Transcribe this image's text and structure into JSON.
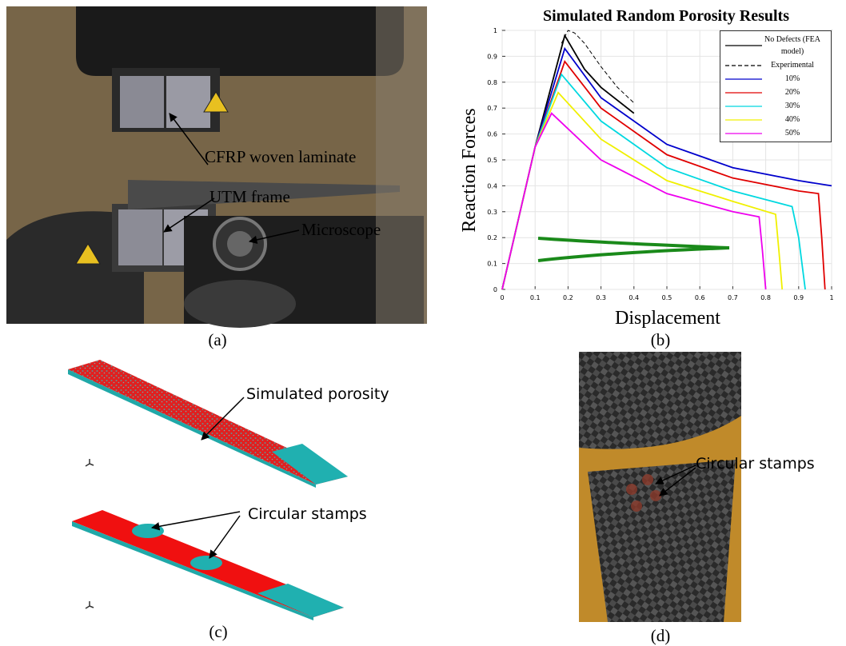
{
  "panel_a": {
    "labels": [
      "CFRP woven laminate",
      "UTM frame",
      "Microscope"
    ],
    "caption": "(a)"
  },
  "chart_data": {
    "type": "line",
    "title": "Simulated Random Porosity Results",
    "x_label": "Displacement",
    "y_label": "Reaction Forces",
    "xlim": [
      0,
      1
    ],
    "xticks": [
      0,
      0.1,
      0.2,
      0.3,
      0.4,
      0.5,
      0.6,
      0.7,
      0.8,
      0.9,
      1
    ],
    "ylim": [
      0,
      1
    ],
    "yticks": [
      0,
      0.1,
      0.2,
      0.3,
      0.4,
      0.5,
      0.6,
      0.7,
      0.8,
      0.9,
      1
    ],
    "grid": true,
    "legend": "top-right",
    "series": [
      {
        "name": "No Defects (FEA model)",
        "color": "#000000",
        "style": "solid",
        "x": [
          0,
          0.1,
          0.19,
          0.25,
          0.3,
          0.4
        ],
        "values": [
          0,
          0.55,
          0.98,
          0.85,
          0.78,
          0.68
        ]
      },
      {
        "name": "Experimental",
        "color": "#000000",
        "style": "dashed",
        "x": [
          0.18,
          0.2,
          0.22,
          0.25,
          0.3,
          0.35,
          0.4
        ],
        "values": [
          0.95,
          1.0,
          0.99,
          0.95,
          0.86,
          0.78,
          0.72
        ]
      },
      {
        "name": "10%",
        "color": "#0000cc",
        "style": "solid",
        "x": [
          0,
          0.1,
          0.19,
          0.3,
          0.5,
          0.7,
          0.9,
          1.0
        ],
        "values": [
          0,
          0.55,
          0.93,
          0.74,
          0.56,
          0.47,
          0.42,
          0.4
        ]
      },
      {
        "name": "20%",
        "color": "#e00000",
        "style": "solid",
        "x": [
          0,
          0.1,
          0.19,
          0.3,
          0.5,
          0.7,
          0.9,
          0.96,
          0.97,
          0.98
        ],
        "values": [
          0,
          0.55,
          0.88,
          0.7,
          0.52,
          0.43,
          0.38,
          0.37,
          0.2,
          0
        ]
      },
      {
        "name": "30%",
        "color": "#00d8e0",
        "style": "solid",
        "x": [
          0,
          0.1,
          0.18,
          0.3,
          0.5,
          0.7,
          0.88,
          0.9,
          0.92
        ],
        "values": [
          0,
          0.55,
          0.83,
          0.65,
          0.47,
          0.38,
          0.32,
          0.2,
          0
        ]
      },
      {
        "name": "40%",
        "color": "#f0f000",
        "style": "solid",
        "x": [
          0,
          0.1,
          0.17,
          0.3,
          0.5,
          0.7,
          0.83,
          0.84,
          0.85
        ],
        "values": [
          0,
          0.55,
          0.76,
          0.58,
          0.42,
          0.34,
          0.29,
          0.15,
          0
        ]
      },
      {
        "name": "50%",
        "color": "#ee00ee",
        "style": "solid",
        "x": [
          0,
          0.1,
          0.15,
          0.3,
          0.5,
          0.7,
          0.78,
          0.79,
          0.8
        ],
        "values": [
          0,
          0.55,
          0.68,
          0.5,
          0.37,
          0.3,
          0.28,
          0.15,
          0
        ]
      }
    ],
    "caption": "(b)"
  },
  "panel_c": {
    "labels": [
      "Simulated porosity",
      "Circular stamps"
    ],
    "caption": "(c)"
  },
  "panel_d": {
    "labels": [
      "Circular stamps"
    ],
    "caption": "(d)"
  }
}
